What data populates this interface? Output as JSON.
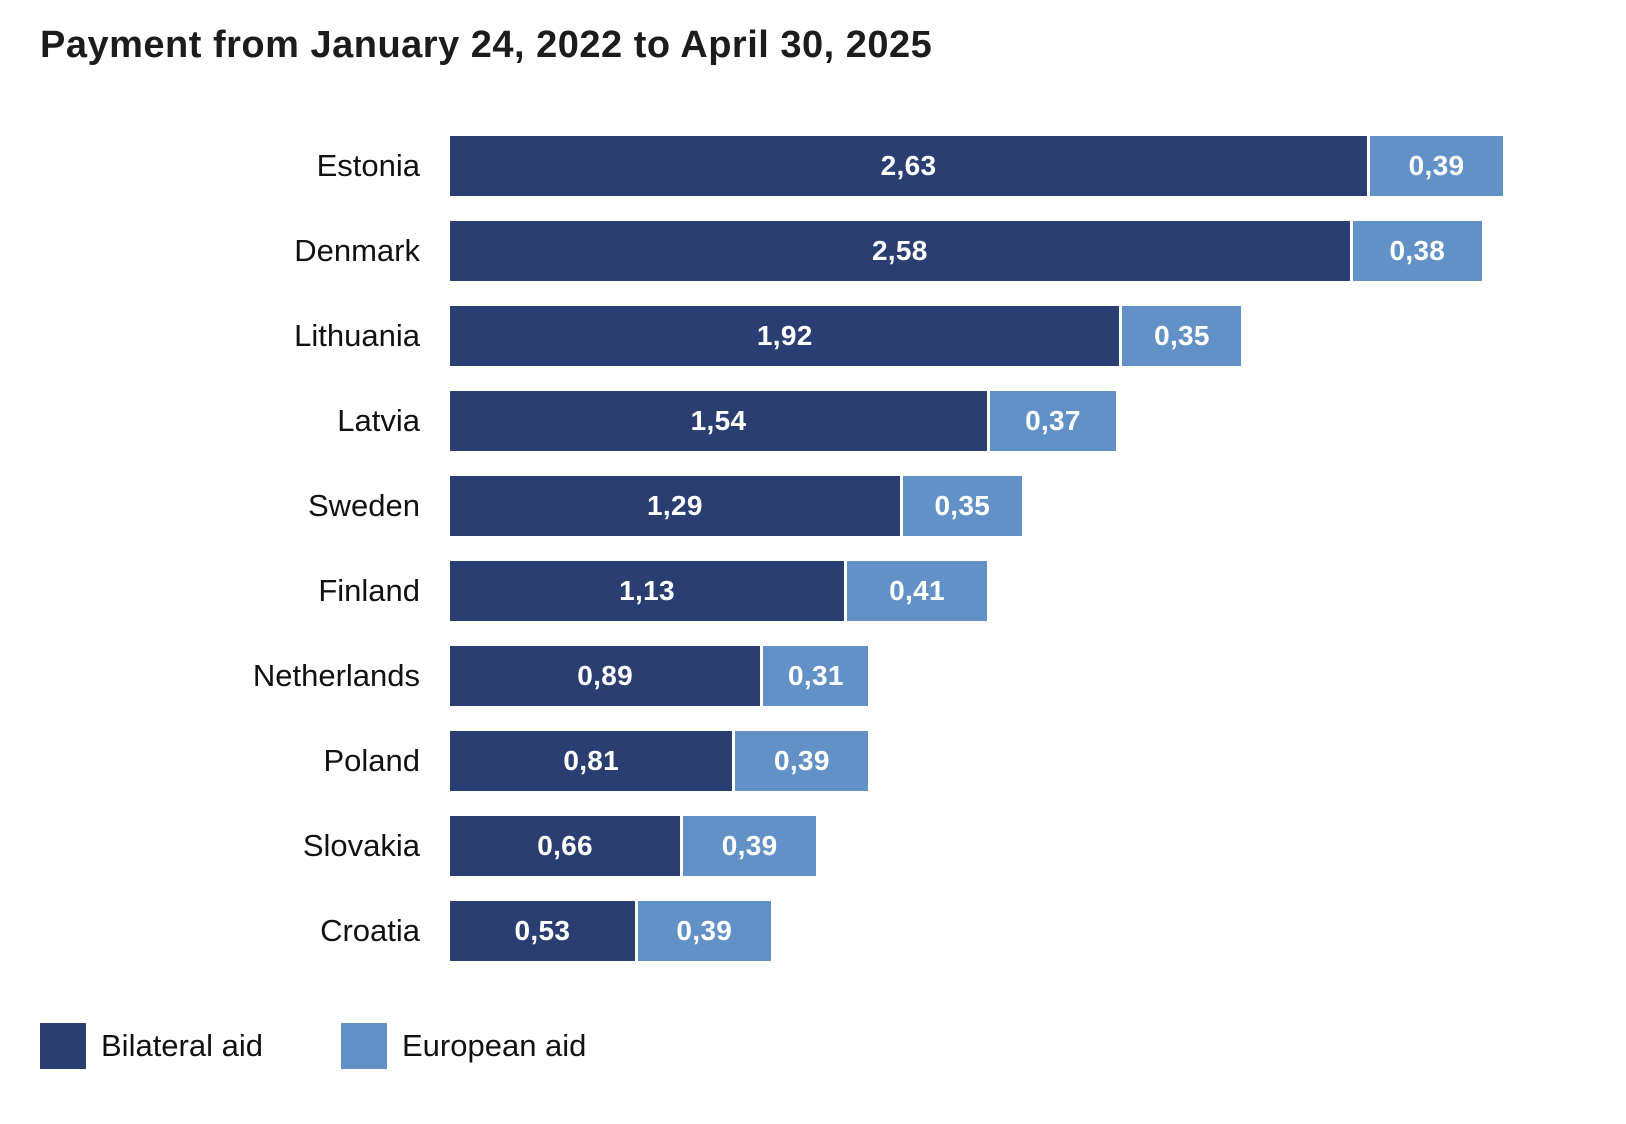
{
  "title": "Payment from January 24, 2022 to April 30, 2025",
  "legend": {
    "items": [
      {
        "label": "Bilateral aid",
        "color": "#2b3e72"
      },
      {
        "label": "European aid",
        "color": "#6291c7"
      }
    ]
  },
  "chart_data": {
    "type": "bar",
    "orientation": "horizontal",
    "stacked": true,
    "title": "Payment from January 24, 2022 to April 30, 2025",
    "categories": [
      "Estonia",
      "Denmark",
      "Lithuania",
      "Latvia",
      "Sweden",
      "Finland",
      "Netherlands",
      "Poland",
      "Slovakia",
      "Croatia"
    ],
    "series": [
      {
        "name": "Bilateral aid",
        "color": "#2b3e72",
        "values": [
          2.63,
          2.58,
          1.92,
          1.54,
          1.29,
          1.13,
          0.89,
          0.81,
          0.66,
          0.53
        ],
        "labels": [
          "2,63",
          "2,58",
          "1,92",
          "1,54",
          "1,29",
          "1,13",
          "0,89",
          "0,81",
          "0,66",
          "0,53"
        ]
      },
      {
        "name": "European aid",
        "color": "#6291c7",
        "values": [
          0.39,
          0.38,
          0.35,
          0.37,
          0.35,
          0.41,
          0.31,
          0.39,
          0.39,
          0.39
        ],
        "labels": [
          "0,39",
          "0,38",
          "0,35",
          "0,37",
          "0,35",
          "0,41",
          "0,31",
          "0,39",
          "0,39",
          "0,39"
        ]
      }
    ],
    "xlim": [
      0,
      3.02
    ],
    "grid": false,
    "legend_position": "bottom-left",
    "value_label_color": "#ffffff"
  }
}
